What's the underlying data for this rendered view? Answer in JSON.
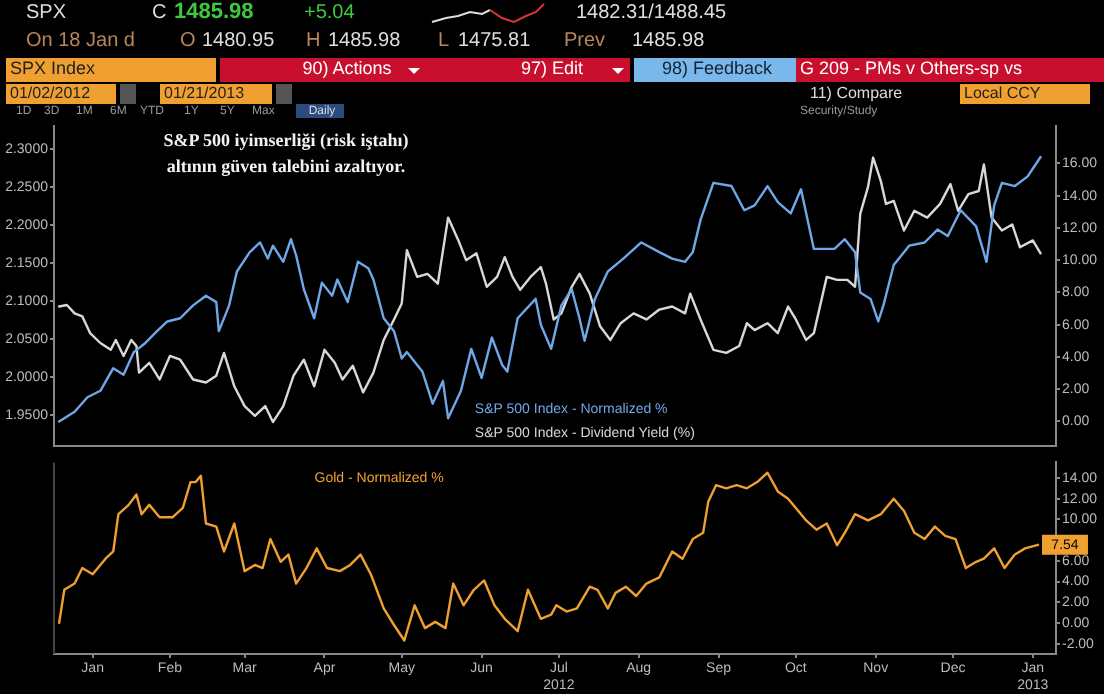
{
  "chart_data": [
    {
      "type": "line",
      "title": "S&P 500 iyimserliği (risk iştahı) altının güven talebini azaltıyor.",
      "legend": "bottom",
      "grid": false,
      "marker": "none",
      "line_style": "solid",
      "tick_labels": "y",
      "annotations": [
        "SPX",
        "C",
        "1485.98",
        "+5.04",
        "1482.31/1488.45",
        "On 18 Jan d",
        "O",
        "1480.95",
        "H",
        "1485.98",
        "L",
        "1475.81",
        "Prev",
        "1485.98",
        "SPX Index",
        "90) Actions",
        "97) Edit",
        "98) Feedback",
        "G 209 - PMs v Others-sp vs",
        "01/02/2012",
        "01/21/2013",
        "11) Compare",
        "Local CCY",
        "1D",
        "3D",
        "1M",
        "6M",
        "YTD",
        "1Y",
        "5Y",
        "Max",
        "Daily",
        "Security/Study"
      ],
      "xlim": [
        "2012-01-01",
        "2013-01-24"
      ],
      "ylim": [
        1.91,
        2.33
      ],
      "yticks": [
        {
          "value": 1.95,
          "label": "1.9500"
        },
        {
          "value": 2.0,
          "label": "2.0000"
        },
        {
          "value": 2.05,
          "label": "2.0500"
        },
        {
          "value": 2.1,
          "label": "2.1000"
        },
        {
          "value": 2.15,
          "label": "2.1500"
        },
        {
          "value": 2.2,
          "label": "2.2000"
        },
        {
          "value": 2.25,
          "label": "2.2500"
        },
        {
          "value": 2.3,
          "label": "2.3000"
        }
      ],
      "y2lim": [
        -1.5,
        18.3
      ],
      "y2ticks": [
        {
          "value": 0,
          "label": "0.00"
        },
        {
          "value": 2,
          "label": "2.00"
        },
        {
          "value": 4,
          "label": "4.00"
        },
        {
          "value": 6,
          "label": "6.00"
        },
        {
          "value": 8,
          "label": "8.00"
        },
        {
          "value": 10,
          "label": "10.00"
        },
        {
          "value": 12,
          "label": "12.00"
        },
        {
          "value": 14,
          "label": "14.00"
        },
        {
          "value": 16,
          "label": "16.00"
        }
      ],
      "series": [
        {
          "name": "S&P 500 Index - Normalized %",
          "color": "#6fa8e8",
          "axis": "y2",
          "x": [
            "2012-01-03",
            "2012-01-09",
            "2012-01-14",
            "2012-01-19",
            "2012-01-24",
            "2012-01-28",
            "2012-02-01",
            "2012-02-05",
            "2012-02-10",
            "2012-02-14",
            "2012-02-19",
            "2012-02-24",
            "2012-02-29",
            "2012-03-04",
            "2012-03-05",
            "2012-03-09",
            "2012-03-12",
            "2012-03-17",
            "2012-03-21",
            "2012-03-24",
            "2012-03-26",
            "2012-03-30",
            "2012-04-02",
            "2012-04-04",
            "2012-04-07",
            "2012-04-11",
            "2012-04-14",
            "2012-04-18",
            "2012-04-20",
            "2012-04-24",
            "2012-04-28",
            "2012-05-02",
            "2012-05-04",
            "2012-05-08",
            "2012-05-12",
            "2012-05-15",
            "2012-05-17",
            "2012-05-23",
            "2012-05-27",
            "2012-05-31",
            "2012-06-02",
            "2012-06-07",
            "2012-06-11",
            "2012-06-15",
            "2012-06-19",
            "2012-06-23",
            "2012-06-25",
            "2012-06-29",
            "2012-07-06",
            "2012-07-08",
            "2012-07-12",
            "2012-07-16",
            "2012-07-20",
            "2012-07-23",
            "2012-07-25",
            "2012-07-29",
            "2012-08-03",
            "2012-08-09",
            "2012-08-16",
            "2012-08-23",
            "2012-08-28",
            "2012-09-02",
            "2012-09-05",
            "2012-09-08",
            "2012-09-13",
            "2012-09-20",
            "2012-09-25",
            "2012-09-29",
            "2012-10-04",
            "2012-10-08",
            "2012-10-13",
            "2012-10-17",
            "2012-10-22",
            "2012-10-30",
            "2012-11-03",
            "2012-11-07",
            "2012-11-09",
            "2012-11-13",
            "2012-11-16",
            "2012-11-18",
            "2012-11-22",
            "2012-11-28",
            "2012-12-04",
            "2012-12-09",
            "2012-12-13",
            "2012-12-18",
            "2012-12-24",
            "2012-12-28",
            "2012-12-31",
            "2013-01-03",
            "2013-01-08",
            "2013-01-13",
            "2013-01-18"
          ],
          "values": [
            0.0,
            0.6,
            1.5,
            1.9,
            3.3,
            2.9,
            4.3,
            4.8,
            5.6,
            6.2,
            6.4,
            7.2,
            7.8,
            7.4,
            5.6,
            7.2,
            9.3,
            10.5,
            11.1,
            10.1,
            10.9,
            9.9,
            11.3,
            10.3,
            8.2,
            6.4,
            8.6,
            7.8,
            8.8,
            7.4,
            9.9,
            9.5,
            8.8,
            6.4,
            5.6,
            3.9,
            4.3,
            3.1,
            1.1,
            2.5,
            0.2,
            1.9,
            4.5,
            2.7,
            5.2,
            3.5,
            3.1,
            6.4,
            7.6,
            6.0,
            4.5,
            7.2,
            8.2,
            6.4,
            5.0,
            7.6,
            9.3,
            10.1,
            11.1,
            10.5,
            10.1,
            9.9,
            10.5,
            12.5,
            14.8,
            14.6,
            13.1,
            13.4,
            14.6,
            13.6,
            12.9,
            14.4,
            10.7,
            10.7,
            11.3,
            10.5,
            8.0,
            7.6,
            6.2,
            7.2,
            9.7,
            10.9,
            11.1,
            11.9,
            11.5,
            13.1,
            12.1,
            9.9,
            13.4,
            14.8,
            14.6,
            15.2,
            16.4
          ]
        },
        {
          "name": "S&P 500 Index - Dividend Yield (%)",
          "color": "#d8d8d8",
          "x": [
            "2012-01-03",
            "2012-01-06",
            "2012-01-09",
            "2012-01-12",
            "2012-01-15",
            "2012-01-19",
            "2012-01-23",
            "2012-01-25",
            "2012-01-28",
            "2012-01-31",
            "2012-02-02",
            "2012-02-03",
            "2012-02-07",
            "2012-02-11",
            "2012-02-15",
            "2012-02-19",
            "2012-02-24",
            "2012-02-29",
            "2012-03-04",
            "2012-03-07",
            "2012-03-11",
            "2012-03-15",
            "2012-03-19",
            "2012-03-23",
            "2012-03-26",
            "2012-03-30",
            "2012-04-03",
            "2012-04-07",
            "2012-04-11",
            "2012-04-15",
            "2012-04-19",
            "2012-04-22",
            "2012-04-26",
            "2012-04-30",
            "2012-05-04",
            "2012-05-08",
            "2012-05-12",
            "2012-05-15",
            "2012-05-17",
            "2012-05-21",
            "2012-05-25",
            "2012-05-29",
            "2012-06-02",
            "2012-06-06",
            "2012-06-09",
            "2012-06-13",
            "2012-06-17",
            "2012-06-21",
            "2012-06-24",
            "2012-06-27",
            "2012-06-30",
            "2012-07-04",
            "2012-07-08",
            "2012-07-10",
            "2012-07-13",
            "2012-07-16",
            "2012-07-20",
            "2012-07-23",
            "2012-07-27",
            "2012-07-31",
            "2012-08-04",
            "2012-08-08",
            "2012-08-13",
            "2012-08-18",
            "2012-08-23",
            "2012-08-28",
            "2012-09-02",
            "2012-09-04",
            "2012-09-08",
            "2012-09-13",
            "2012-09-18",
            "2012-09-23",
            "2012-09-26",
            "2012-09-29",
            "2012-10-04",
            "2012-10-08",
            "2012-10-12",
            "2012-10-15",
            "2012-10-19",
            "2012-10-22",
            "2012-10-27",
            "2012-10-31",
            "2012-11-04",
            "2012-11-07",
            "2012-11-09",
            "2012-11-12",
            "2012-11-14",
            "2012-11-17",
            "2012-11-19",
            "2012-11-22",
            "2012-11-26",
            "2012-11-30",
            "2012-12-05",
            "2012-12-10",
            "2012-12-14",
            "2012-12-17",
            "2012-12-21",
            "2012-12-25",
            "2012-12-27",
            "2012-12-30",
            "2013-01-03",
            "2013-01-07",
            "2013-01-10",
            "2013-01-15",
            "2013-01-18"
          ],
          "values": [
            2.093,
            2.095,
            2.084,
            2.08,
            2.058,
            2.045,
            2.036,
            2.049,
            2.028,
            2.049,
            2.041,
            2.006,
            2.019,
            1.997,
            2.028,
            2.023,
            1.997,
            1.993,
            2.002,
            2.032,
            1.988,
            1.962,
            1.949,
            1.962,
            1.941,
            1.962,
            2.002,
            2.023,
            1.988,
            2.036,
            2.019,
            1.997,
            2.015,
            1.98,
            2.006,
            2.049,
            2.076,
            2.097,
            2.167,
            2.132,
            2.136,
            2.123,
            2.21,
            2.18,
            2.154,
            2.163,
            2.119,
            2.132,
            2.158,
            2.132,
            2.115,
            2.132,
            2.145,
            2.123,
            2.076,
            2.084,
            2.119,
            2.136,
            2.11,
            2.067,
            2.049,
            2.071,
            2.084,
            2.076,
            2.089,
            2.093,
            2.084,
            2.11,
            2.076,
            2.036,
            2.032,
            2.041,
            2.071,
            2.062,
            2.071,
            2.058,
            2.093,
            2.076,
            2.049,
            2.058,
            2.132,
            2.128,
            2.128,
            2.119,
            2.215,
            2.25,
            2.289,
            2.258,
            2.228,
            2.232,
            2.193,
            2.219,
            2.21,
            2.228,
            2.254,
            2.219,
            2.241,
            2.245,
            2.28,
            2.21,
            2.193,
            2.201,
            2.171,
            2.18,
            2.163
          ]
        }
      ]
    },
    {
      "type": "line",
      "legend": "top",
      "grid": false,
      "marker": "none",
      "line_style": "solid",
      "xlim": [
        "2012-01-01",
        "2013-01-24"
      ],
      "xticks": [
        {
          "value": "2012-01-16",
          "label": "Jan"
        },
        {
          "value": "2012-02-15",
          "label": "Feb"
        },
        {
          "value": "2012-03-15",
          "label": "Mar"
        },
        {
          "value": "2012-04-15",
          "label": "Apr"
        },
        {
          "value": "2012-05-15",
          "label": "May"
        },
        {
          "value": "2012-06-15",
          "label": "Jun"
        },
        {
          "value": "2012-07-15",
          "label": "Jul\n2012"
        },
        {
          "value": "2012-08-15",
          "label": "Aug"
        },
        {
          "value": "2012-09-15",
          "label": "Sep"
        },
        {
          "value": "2012-10-15",
          "label": "Oct"
        },
        {
          "value": "2012-11-15",
          "label": "Nov"
        },
        {
          "value": "2012-12-15",
          "label": "Dec"
        },
        {
          "value": "2013-01-15",
          "label": "Jan\n2013"
        }
      ],
      "y2lim": [
        -3,
        15.5
      ],
      "y2ticks": [
        {
          "value": -2,
          "label": "-2.00"
        },
        {
          "value": 0,
          "label": "0.00"
        },
        {
          "value": 2,
          "label": "2.00"
        },
        {
          "value": 4,
          "label": "4.00"
        },
        {
          "value": 6,
          "label": "6.00"
        },
        {
          "value": 8,
          "label": null
        },
        {
          "value": 10,
          "label": "10.00"
        },
        {
          "value": 12,
          "label": "12.00"
        },
        {
          "value": 14,
          "label": "14.00"
        }
      ],
      "series": [
        {
          "name": "Gold - Normalized %",
          "color": "#f0a030",
          "axis": "y2",
          "x": [
            "2012-01-03",
            "2012-01-05",
            "2012-01-09",
            "2012-01-12",
            "2012-01-16",
            "2012-01-21",
            "2012-01-24",
            "2012-01-26",
            "2012-01-30",
            "2012-02-02",
            "2012-02-04",
            "2012-02-07",
            "2012-02-11",
            "2012-02-16",
            "2012-02-20",
            "2012-02-23",
            "2012-02-25",
            "2012-02-27",
            "2012-02-29",
            "2012-03-04",
            "2012-03-07",
            "2012-03-11",
            "2012-03-15",
            "2012-03-19",
            "2012-03-22",
            "2012-03-25",
            "2012-03-29",
            "2012-04-01",
            "2012-04-04",
            "2012-04-08",
            "2012-04-12",
            "2012-04-16",
            "2012-04-21",
            "2012-04-25",
            "2012-04-29",
            "2012-05-03",
            "2012-05-08",
            "2012-05-12",
            "2012-05-16",
            "2012-05-20",
            "2012-05-24",
            "2012-05-28",
            "2012-06-01",
            "2012-06-04",
            "2012-06-08",
            "2012-06-12",
            "2012-06-16",
            "2012-06-20",
            "2012-06-24",
            "2012-06-29",
            "2012-07-03",
            "2012-07-08",
            "2012-07-12",
            "2012-07-14",
            "2012-07-18",
            "2012-07-22",
            "2012-07-27",
            "2012-07-30",
            "2012-08-03",
            "2012-08-06",
            "2012-08-10",
            "2012-08-14",
            "2012-08-18",
            "2012-08-23",
            "2012-08-28",
            "2012-09-01",
            "2012-09-05",
            "2012-09-09",
            "2012-09-11",
            "2012-09-14",
            "2012-09-18",
            "2012-09-22",
            "2012-09-26",
            "2012-09-30",
            "2012-10-04",
            "2012-10-08",
            "2012-10-12",
            "2012-10-15",
            "2012-10-19",
            "2012-10-23",
            "2012-10-27",
            "2012-10-31",
            "2012-11-03",
            "2012-11-07",
            "2012-11-12",
            "2012-11-17",
            "2012-11-22",
            "2012-11-26",
            "2012-11-30",
            "2012-12-04",
            "2012-12-08",
            "2012-12-12",
            "2012-12-16",
            "2012-12-20",
            "2012-12-24",
            "2012-12-27",
            "2012-12-31",
            "2013-01-04",
            "2013-01-08",
            "2013-01-12",
            "2013-01-17"
          ],
          "values": [
            0.0,
            3.2,
            3.8,
            5.3,
            4.7,
            6.2,
            6.9,
            10.5,
            11.4,
            12.4,
            10.5,
            11.4,
            10.2,
            10.2,
            11.1,
            13.6,
            13.6,
            14.2,
            9.6,
            9.3,
            6.9,
            9.6,
            5.0,
            5.6,
            5.3,
            8.1,
            5.9,
            6.6,
            3.8,
            5.3,
            7.2,
            5.3,
            5.0,
            5.6,
            6.6,
            4.7,
            1.4,
            -0.2,
            -1.7,
            1.7,
            -0.5,
            0.1,
            -0.5,
            3.8,
            1.7,
            3.2,
            4.1,
            1.7,
            0.4,
            -0.8,
            3.2,
            0.4,
            0.8,
            1.7,
            1.1,
            1.4,
            3.5,
            3.2,
            1.4,
            2.9,
            3.5,
            2.6,
            3.8,
            4.4,
            6.9,
            6.2,
            8.1,
            8.7,
            11.7,
            13.3,
            13.0,
            13.3,
            13.0,
            13.6,
            14.5,
            12.7,
            12.0,
            11.1,
            9.9,
            9.0,
            9.6,
            7.5,
            8.7,
            10.5,
            9.9,
            10.5,
            12.0,
            10.8,
            8.7,
            8.1,
            9.3,
            8.4,
            8.1,
            5.3,
            5.9,
            6.2,
            7.2,
            5.3,
            6.6,
            7.2,
            7.54
          ],
          "value_labels": [
            null,
            null,
            null,
            null,
            null,
            null,
            null,
            null,
            null,
            null,
            null,
            null,
            null,
            null,
            null,
            null,
            null,
            null,
            null,
            null,
            null,
            null,
            null,
            null,
            null,
            null,
            null,
            null,
            null,
            null,
            null,
            null,
            null,
            null,
            null,
            null,
            null,
            null,
            null,
            null,
            null,
            null,
            null,
            null,
            null,
            null,
            null,
            null,
            null,
            null,
            null,
            null,
            null,
            null,
            null,
            null,
            null,
            null,
            null,
            null,
            null,
            null,
            null,
            null,
            null,
            null,
            null,
            null,
            null,
            null,
            null,
            null,
            null,
            null,
            null,
            null,
            null,
            null,
            null,
            null,
            null,
            null,
            null,
            null,
            null,
            null,
            null,
            null,
            null,
            null,
            null,
            null,
            null,
            null,
            null,
            null,
            null,
            null,
            null,
            null,
            "7.54"
          ]
        }
      ]
    }
  ]
}
